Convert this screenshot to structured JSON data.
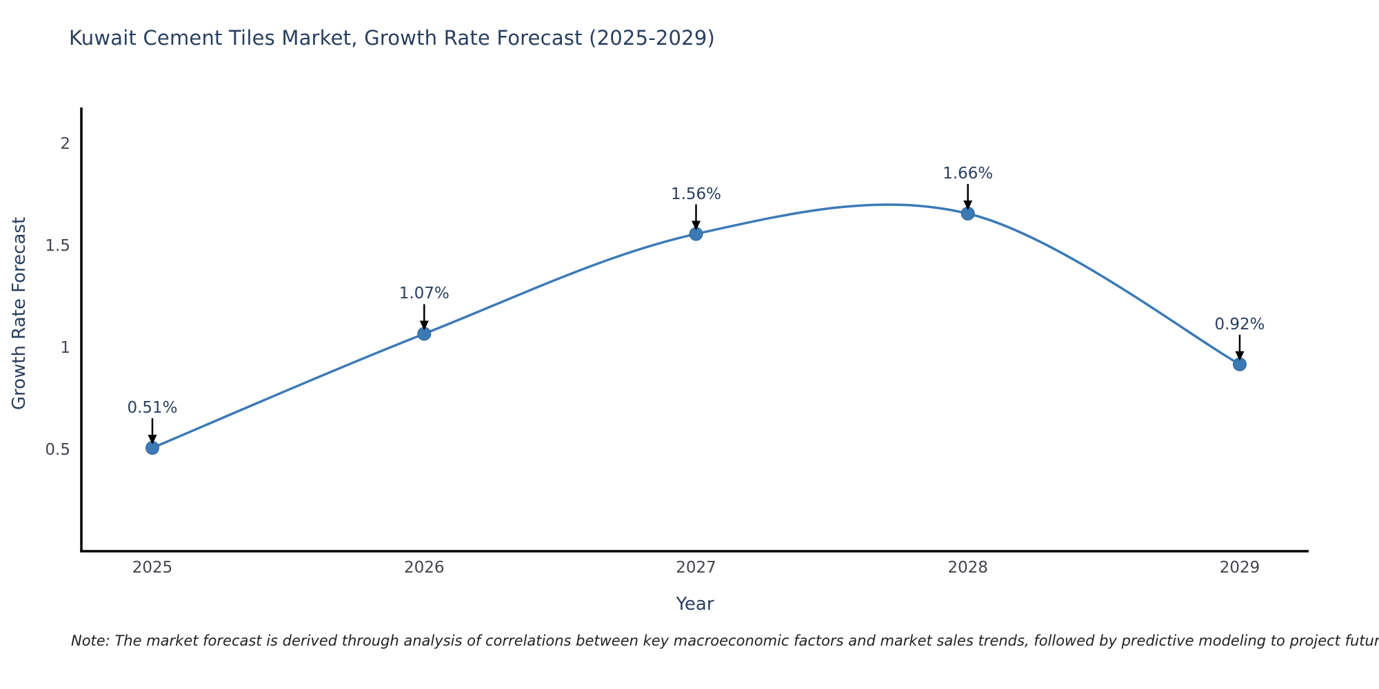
{
  "chart_data": {
    "type": "line",
    "title": "Kuwait Cement Tiles Market, Growth Rate Forecast (2025-2029)",
    "xlabel": "Year",
    "ylabel": "Growth Rate Forecast",
    "categories": [
      "2025",
      "2026",
      "2027",
      "2028",
      "2029"
    ],
    "values": [
      0.51,
      1.07,
      1.56,
      1.66,
      0.92
    ],
    "point_labels": [
      "0.51%",
      "1.07%",
      "1.56%",
      "1.66%",
      "0.92%"
    ],
    "y_ticks": [
      {
        "label": "0.5",
        "value": 0.5
      },
      {
        "label": "1",
        "value": 1
      },
      {
        "label": "1.5",
        "value": 1.5
      },
      {
        "label": "2",
        "value": 2
      }
    ],
    "ylim": [
      0,
      2.17
    ],
    "grid": false,
    "legend": "none",
    "line_shape": "spline",
    "series_name": "Growth Rate Forecast",
    "colors": {
      "line": "#3c7ab5",
      "marker": "#3c7ab5",
      "marker_edge": "#2f6595",
      "axis": "#000000",
      "title_text": "#2a3f5f",
      "tick_text": "#42454c",
      "annotation_arrow": "#000000"
    },
    "note": "Note: The market forecast is derived through analysis of correlations between key macroeconomic factors and market sales trends, followed by predictive modeling to project future sales"
  }
}
